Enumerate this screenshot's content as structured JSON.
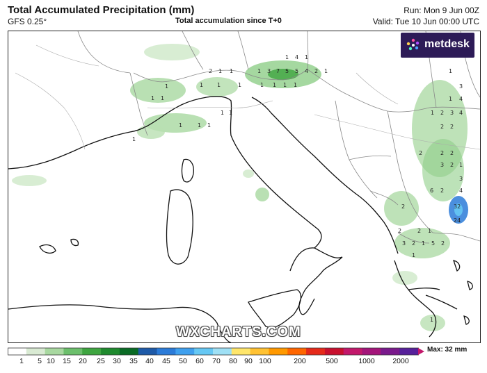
{
  "header": {
    "title": "Total Accumulated Precipitation (mm)",
    "model": "GFS 0.25°",
    "subtitle": "Total accumulation since T+0",
    "run": "Run: Mon 9 Jun 00Z",
    "valid": "Valid: Tue 10 Jun 00:00 UTC"
  },
  "logo": {
    "text": "metdesk",
    "icon": "metdesk-flower-icon"
  },
  "watermark": "WXCHARTS.COM",
  "legend": {
    "max_label": "Max: 32 mm",
    "ticks": [
      "1",
      "5",
      "10",
      "15",
      "20",
      "25",
      "30",
      "35",
      "40",
      "45",
      "50",
      "60",
      "70",
      "80",
      "90",
      "100",
      "200",
      "500",
      "1000",
      "2000"
    ],
    "colors": [
      "#ffffff",
      "#d9ead3",
      "#a8d8a0",
      "#6cbf6c",
      "#3ea540",
      "#1f8a2e",
      "#0a6b25",
      "#1e5aa8",
      "#2b7bd8",
      "#3fa0ee",
      "#66c8f4",
      "#9fe0f5",
      "#ffe66b",
      "#ffc233",
      "#ff9900",
      "#ff6600",
      "#e52a1a",
      "#c8102e",
      "#c2186b",
      "#a4157a",
      "#7a1a8c",
      "#57209a"
    ]
  },
  "map": {
    "region": "Italy and central Mediterranean",
    "precip_values": [
      "1",
      "4",
      "1",
      "2",
      "1",
      "1",
      "1",
      "3",
      "7",
      "5",
      "5",
      "4",
      "2",
      "1",
      "1",
      "1",
      "1",
      "1",
      "1",
      "1",
      "1",
      "1",
      "1",
      "1",
      "1",
      "1",
      "1",
      "1",
      "1",
      "1",
      "1",
      "3",
      "1",
      "4",
      "1",
      "2",
      "3",
      "4",
      "2",
      "2",
      "2",
      "2",
      "2",
      "1",
      "3",
      "2",
      "3",
      "6",
      "2",
      "4",
      "32",
      "24",
      "2",
      "2",
      "2",
      "1",
      "3",
      "2",
      "1",
      "5",
      "2",
      "1",
      "1"
    ]
  }
}
